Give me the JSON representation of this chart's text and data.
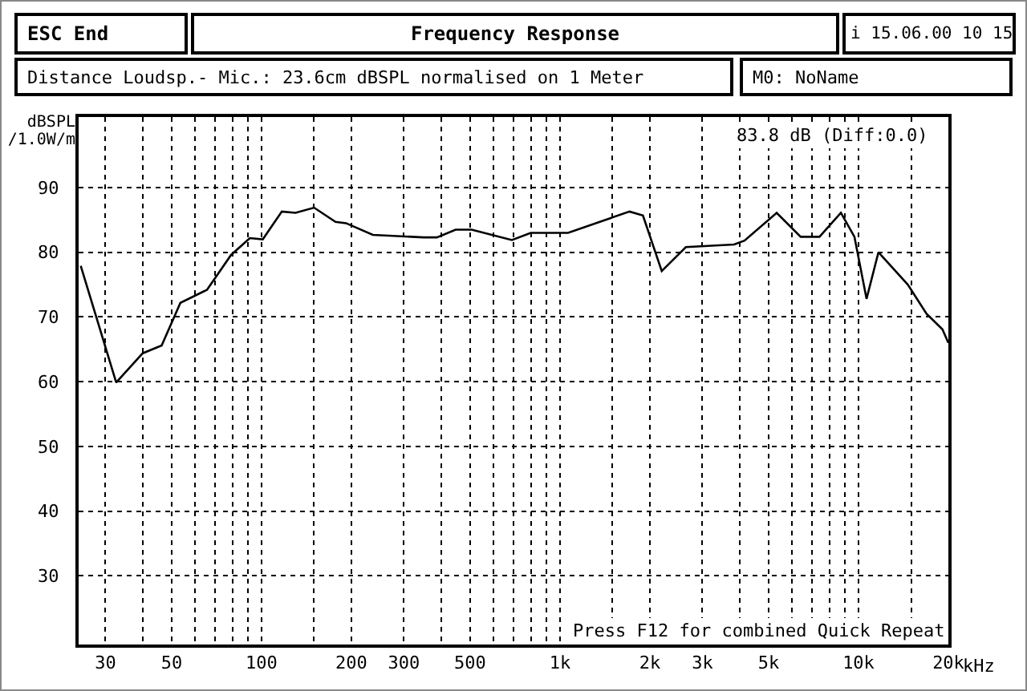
{
  "chart_data": {
    "type": "line",
    "title": "Frequency Response",
    "ylabel": "dBSPL /1.0W/m",
    "annotations": [
      "ESC End",
      "i 15.06.00 10 15",
      "Distance Loudsp.- Mic.: 23.6cm dBSPL normalised on 1 Meter",
      "M0: NoName",
      "83.8 dB (Diff:0.0)",
      "Press F12 for combined Quick Repeat"
    ],
    "log": "x",
    "grid": true,
    "marker": "none",
    "line_style": "solid",
    "xlim": [
      24.4,
      20000
    ],
    "ylim": [
      19.4,
      100.9
    ],
    "xticks": [
      {
        "value": 30,
        "label": "30"
      },
      {
        "value": 40,
        "label": null
      },
      {
        "value": 50,
        "label": "50"
      },
      {
        "value": 60,
        "label": null
      },
      {
        "value": 70,
        "label": null
      },
      {
        "value": 80,
        "label": null
      },
      {
        "value": 90,
        "label": null
      },
      {
        "value": 100,
        "label": "100"
      },
      {
        "value": 150,
        "label": null
      },
      {
        "value": 200,
        "label": "200"
      },
      {
        "value": 300,
        "label": "300"
      },
      {
        "value": 400,
        "label": null
      },
      {
        "value": 500,
        "label": "500"
      },
      {
        "value": 600,
        "label": null
      },
      {
        "value": 700,
        "label": null
      },
      {
        "value": 800,
        "label": null
      },
      {
        "value": 900,
        "label": null
      },
      {
        "value": 1000,
        "label": "1k"
      },
      {
        "value": 1500,
        "label": null
      },
      {
        "value": 2000,
        "label": "2k"
      },
      {
        "value": 3000,
        "label": "3k"
      },
      {
        "value": 4000,
        "label": null
      },
      {
        "value": 5000,
        "label": "5k"
      },
      {
        "value": 6000,
        "label": null
      },
      {
        "value": 7000,
        "label": null
      },
      {
        "value": 8000,
        "label": null
      },
      {
        "value": 9000,
        "label": null
      },
      {
        "value": 10000,
        "label": "10k"
      },
      {
        "value": 15000,
        "label": null
      },
      {
        "value": 20000,
        "label": "20k"
      }
    ],
    "xlabel": "kHz",
    "yticks": [
      30,
      40,
      50,
      60,
      70,
      80,
      90
    ],
    "series": [
      {
        "color": "#000000",
        "x": [
          24.8,
          32.6,
          40,
          46.3,
          53.5,
          65.7,
          79.1,
          91.4,
          101,
          117,
          130,
          150,
          177,
          192,
          236,
          349,
          387,
          447,
          506,
          690,
          798,
          1064,
          1480,
          1710,
          1896,
          2192,
          2640,
          3830,
          4150,
          5320,
          6400,
          7400,
          8730,
          9690,
          10640,
          11660,
          14630,
          16900,
          19100,
          20000
        ],
        "values": [
          77.9,
          59.9,
          64.4,
          65.6,
          72.2,
          74.2,
          79.6,
          82.2,
          82.0,
          86.3,
          86.1,
          86.9,
          84.7,
          84.5,
          82.7,
          82.3,
          82.3,
          83.5,
          83.5,
          81.9,
          83.0,
          83.0,
          85.3,
          86.3,
          85.7,
          77.1,
          80.8,
          81.2,
          81.8,
          86.1,
          82.4,
          82.4,
          86.1,
          82.4,
          72.8,
          80.0,
          75.0,
          70.5,
          68.1,
          66.0
        ]
      }
    ]
  }
}
